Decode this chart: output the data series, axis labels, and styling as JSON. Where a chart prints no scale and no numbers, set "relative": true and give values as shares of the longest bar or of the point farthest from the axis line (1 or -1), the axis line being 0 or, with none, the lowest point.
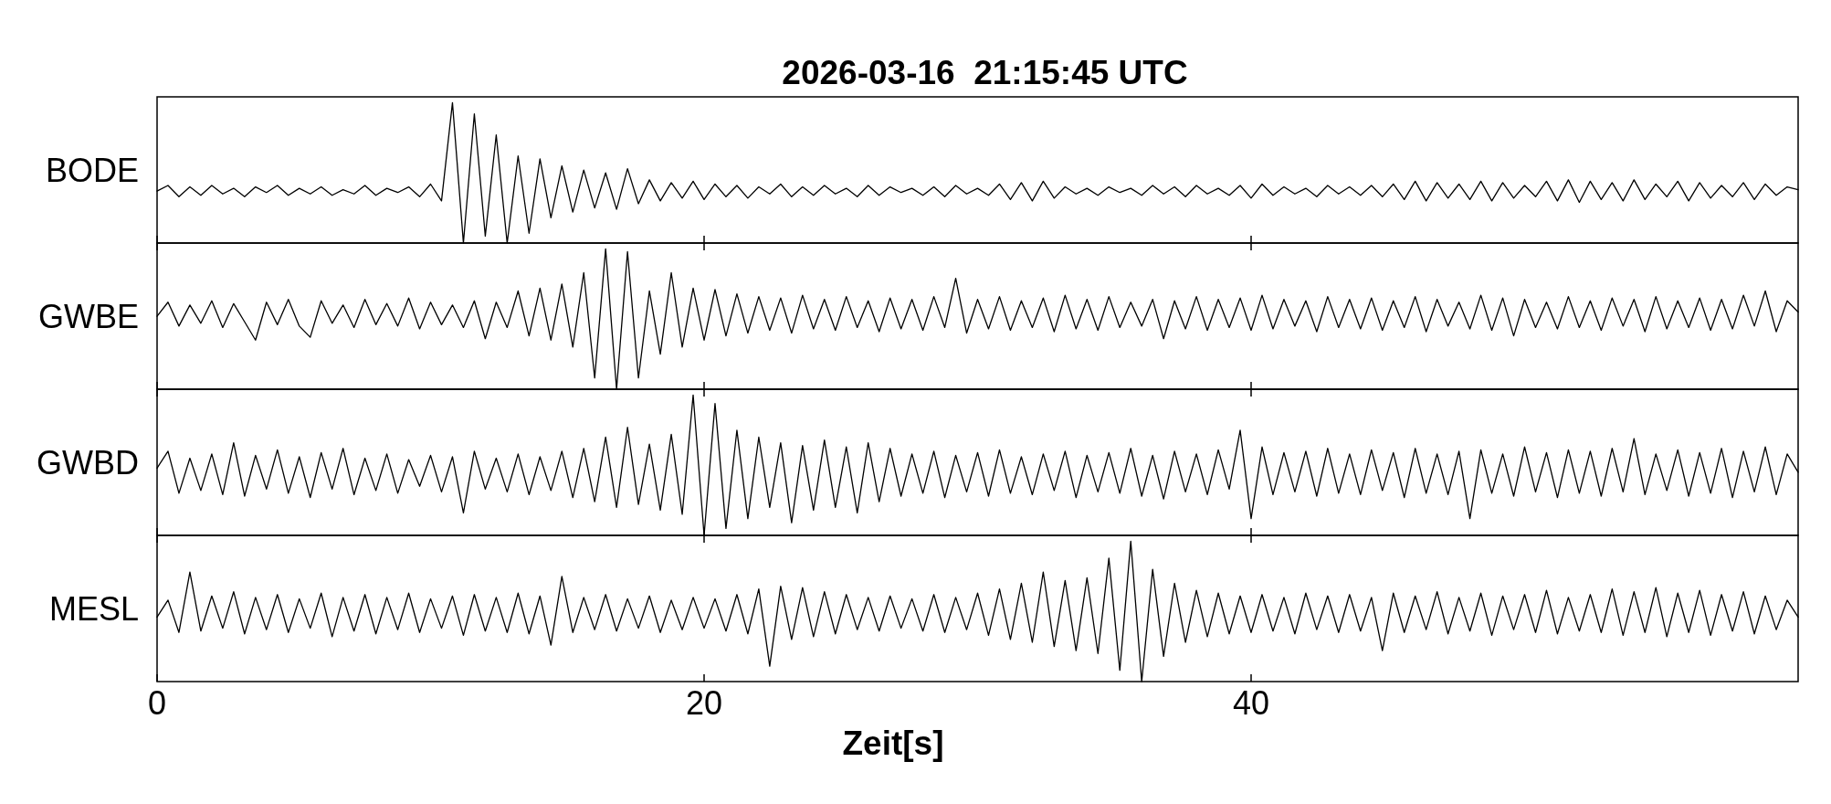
{
  "chart_data": [
    {
      "type": "line",
      "title": "2026-03-16  21:15:45 UTC",
      "ylabel": "BODE",
      "color": "#000000",
      "relative": true,
      "xlim": [
        0,
        60
      ],
      "xticks": [
        0,
        20,
        40
      ],
      "tick_labels": false,
      "x": [
        0,
        0.4,
        0.8,
        1.2,
        1.6,
        2,
        2.4,
        2.8,
        3.2,
        3.6,
        4,
        4.4,
        4.8,
        5.2,
        5.6,
        6,
        6.4,
        6.8,
        7.2,
        7.6,
        8,
        8.4,
        8.8,
        9.2,
        9.6,
        10,
        10.4,
        10.8,
        11.2,
        11.6,
        12,
        12.4,
        12.8,
        13.2,
        13.6,
        14,
        14.4,
        14.8,
        15.2,
        15.6,
        16,
        16.4,
        16.8,
        17.2,
        17.6,
        18,
        18.4,
        18.8,
        19.2,
        19.6,
        20,
        20.4,
        20.8,
        21.2,
        21.6,
        22,
        22.4,
        22.8,
        23.2,
        23.6,
        24,
        24.4,
        24.8,
        25.2,
        25.6,
        26,
        26.4,
        26.8,
        27.2,
        27.6,
        28,
        28.4,
        28.8,
        29.2,
        29.6,
        30,
        30.4,
        30.8,
        31.2,
        31.6,
        32,
        32.4,
        32.8,
        33.2,
        33.6,
        34,
        34.4,
        34.8,
        35.2,
        35.6,
        36,
        36.4,
        36.8,
        37.2,
        37.6,
        38,
        38.4,
        38.8,
        39.2,
        39.6,
        40,
        40.4,
        40.8,
        41.2,
        41.6,
        42,
        42.4,
        42.8,
        43.2,
        43.6,
        44,
        44.4,
        44.8,
        45.2,
        45.6,
        46,
        46.4,
        46.8,
        47.2,
        47.6,
        48,
        48.4,
        48.8,
        49.2,
        49.6,
        50,
        50.4,
        50.8,
        51.2,
        51.6,
        52,
        52.4,
        52.8,
        53.2,
        53.6,
        54,
        54.4,
        54.8,
        55.2,
        55.6,
        56,
        56.4,
        56.8,
        57.2,
        57.6,
        58,
        58.4,
        58.8,
        59.2,
        59.6,
        60
      ],
      "values": [
        0.37,
        0.41,
        0.33,
        0.4,
        0.34,
        0.41,
        0.35,
        0.39,
        0.33,
        0.4,
        0.36,
        0.41,
        0.34,
        0.39,
        0.35,
        0.4,
        0.34,
        0.38,
        0.35,
        0.41,
        0.34,
        0.39,
        0.36,
        0.4,
        0.33,
        0.42,
        0.3,
        1.0,
        0.0,
        0.92,
        0.05,
        0.77,
        0.0,
        0.62,
        0.07,
        0.6,
        0.18,
        0.55,
        0.22,
        0.52,
        0.25,
        0.5,
        0.24,
        0.53,
        0.28,
        0.45,
        0.3,
        0.43,
        0.32,
        0.44,
        0.31,
        0.42,
        0.33,
        0.41,
        0.32,
        0.4,
        0.35,
        0.42,
        0.33,
        0.4,
        0.34,
        0.41,
        0.35,
        0.39,
        0.33,
        0.41,
        0.34,
        0.4,
        0.36,
        0.39,
        0.34,
        0.4,
        0.33,
        0.41,
        0.35,
        0.39,
        0.34,
        0.42,
        0.31,
        0.43,
        0.3,
        0.44,
        0.32,
        0.4,
        0.35,
        0.39,
        0.34,
        0.4,
        0.36,
        0.39,
        0.34,
        0.41,
        0.35,
        0.4,
        0.33,
        0.41,
        0.35,
        0.39,
        0.34,
        0.41,
        0.32,
        0.42,
        0.34,
        0.4,
        0.35,
        0.39,
        0.33,
        0.41,
        0.35,
        0.4,
        0.34,
        0.41,
        0.33,
        0.42,
        0.31,
        0.44,
        0.3,
        0.43,
        0.32,
        0.42,
        0.31,
        0.44,
        0.3,
        0.43,
        0.32,
        0.41,
        0.33,
        0.44,
        0.3,
        0.45,
        0.29,
        0.44,
        0.31,
        0.43,
        0.3,
        0.45,
        0.31,
        0.42,
        0.33,
        0.44,
        0.3,
        0.43,
        0.32,
        0.41,
        0.33,
        0.43,
        0.31,
        0.42,
        0.34,
        0.4,
        0.38
      ]
    },
    {
      "type": "line",
      "ylabel": "GWBE",
      "color": "#000000",
      "relative": true,
      "xlim": [
        0,
        60
      ],
      "xticks": [
        0,
        20,
        40
      ],
      "tick_labels": false,
      "x": [
        0,
        0.4,
        0.8,
        1.2,
        1.6,
        2,
        2.4,
        2.8,
        3.2,
        3.6,
        4,
        4.4,
        4.8,
        5.2,
        5.6,
        6,
        6.4,
        6.8,
        7.2,
        7.6,
        8,
        8.4,
        8.8,
        9.2,
        9.6,
        10,
        10.4,
        10.8,
        11.2,
        11.6,
        12,
        12.4,
        12.8,
        13.2,
        13.6,
        14,
        14.4,
        14.8,
        15.2,
        15.6,
        16,
        16.4,
        16.8,
        17.2,
        17.6,
        18,
        18.4,
        18.8,
        19.2,
        19.6,
        20,
        20.4,
        20.8,
        21.2,
        21.6,
        22,
        22.4,
        22.8,
        23.2,
        23.6,
        24,
        24.4,
        24.8,
        25.2,
        25.6,
        26,
        26.4,
        26.8,
        27.2,
        27.6,
        28,
        28.4,
        28.8,
        29.2,
        29.6,
        30,
        30.4,
        30.8,
        31.2,
        31.6,
        32,
        32.4,
        32.8,
        33.2,
        33.6,
        34,
        34.4,
        34.8,
        35.2,
        35.6,
        36,
        36.4,
        36.8,
        37.2,
        37.6,
        38,
        38.4,
        38.8,
        39.2,
        39.6,
        40,
        40.4,
        40.8,
        41.2,
        41.6,
        42,
        42.4,
        42.8,
        43.2,
        43.6,
        44,
        44.4,
        44.8,
        45.2,
        45.6,
        46,
        46.4,
        46.8,
        47.2,
        47.6,
        48,
        48.4,
        48.8,
        49.2,
        49.6,
        50,
        50.4,
        50.8,
        51.2,
        51.6,
        52,
        52.4,
        52.8,
        53.2,
        53.6,
        54,
        54.4,
        54.8,
        55.2,
        55.6,
        56,
        56.4,
        56.8,
        57.2,
        57.6,
        58,
        58.4,
        58.8,
        59.2,
        59.6,
        60
      ],
      "values": [
        0.52,
        0.62,
        0.45,
        0.6,
        0.47,
        0.63,
        0.44,
        0.61,
        0.48,
        0.35,
        0.62,
        0.46,
        0.64,
        0.45,
        0.37,
        0.63,
        0.47,
        0.6,
        0.44,
        0.64,
        0.46,
        0.61,
        0.45,
        0.65,
        0.43,
        0.62,
        0.46,
        0.6,
        0.44,
        0.63,
        0.36,
        0.62,
        0.44,
        0.7,
        0.38,
        0.72,
        0.35,
        0.75,
        0.3,
        0.83,
        0.08,
        1.0,
        0.0,
        0.98,
        0.08,
        0.7,
        0.25,
        0.83,
        0.3,
        0.72,
        0.35,
        0.71,
        0.38,
        0.68,
        0.4,
        0.66,
        0.42,
        0.65,
        0.4,
        0.67,
        0.43,
        0.64,
        0.42,
        0.66,
        0.44,
        0.63,
        0.41,
        0.65,
        0.43,
        0.64,
        0.42,
        0.66,
        0.44,
        0.79,
        0.4,
        0.64,
        0.43,
        0.66,
        0.42,
        0.63,
        0.44,
        0.65,
        0.41,
        0.67,
        0.43,
        0.64,
        0.42,
        0.66,
        0.44,
        0.62,
        0.45,
        0.64,
        0.36,
        0.63,
        0.43,
        0.66,
        0.42,
        0.64,
        0.44,
        0.65,
        0.42,
        0.67,
        0.43,
        0.64,
        0.45,
        0.63,
        0.41,
        0.66,
        0.44,
        0.64,
        0.43,
        0.65,
        0.42,
        0.63,
        0.44,
        0.66,
        0.41,
        0.64,
        0.45,
        0.62,
        0.43,
        0.67,
        0.42,
        0.65,
        0.38,
        0.64,
        0.44,
        0.62,
        0.43,
        0.66,
        0.44,
        0.63,
        0.42,
        0.65,
        0.45,
        0.64,
        0.41,
        0.66,
        0.43,
        0.63,
        0.44,
        0.65,
        0.42,
        0.64,
        0.43,
        0.67,
        0.45,
        0.7,
        0.41,
        0.63,
        0.55
      ]
    },
    {
      "type": "line",
      "ylabel": "GWBD",
      "color": "#000000",
      "relative": true,
      "xlim": [
        0,
        60
      ],
      "xticks": [
        0,
        20,
        40
      ],
      "tick_labels": false,
      "x": [
        0,
        0.4,
        0.8,
        1.2,
        1.6,
        2,
        2.4,
        2.8,
        3.2,
        3.6,
        4,
        4.4,
        4.8,
        5.2,
        5.6,
        6,
        6.4,
        6.8,
        7.2,
        7.6,
        8,
        8.4,
        8.8,
        9.2,
        9.6,
        10,
        10.4,
        10.8,
        11.2,
        11.6,
        12,
        12.4,
        12.8,
        13.2,
        13.6,
        14,
        14.4,
        14.8,
        15.2,
        15.6,
        16,
        16.4,
        16.8,
        17.2,
        17.6,
        18,
        18.4,
        18.8,
        19.2,
        19.6,
        20,
        20.4,
        20.8,
        21.2,
        21.6,
        22,
        22.4,
        22.8,
        23.2,
        23.6,
        24,
        24.4,
        24.8,
        25.2,
        25.6,
        26,
        26.4,
        26.8,
        27.2,
        27.6,
        28,
        28.4,
        28.8,
        29.2,
        29.6,
        30,
        30.4,
        30.8,
        31.2,
        31.6,
        32,
        32.4,
        32.8,
        33.2,
        33.6,
        34,
        34.4,
        34.8,
        35.2,
        35.6,
        36,
        36.4,
        36.8,
        37.2,
        37.6,
        38,
        38.4,
        38.8,
        39.2,
        39.6,
        40,
        40.4,
        40.8,
        41.2,
        41.6,
        42,
        42.4,
        42.8,
        43.2,
        43.6,
        44,
        44.4,
        44.8,
        45.2,
        45.6,
        46,
        46.4,
        46.8,
        47.2,
        47.6,
        48,
        48.4,
        48.8,
        49.2,
        49.6,
        50,
        50.4,
        50.8,
        51.2,
        51.6,
        52,
        52.4,
        52.8,
        53.2,
        53.6,
        54,
        54.4,
        54.8,
        55.2,
        55.6,
        56,
        56.4,
        56.8,
        57.2,
        57.6,
        58,
        58.4,
        58.8,
        59.2,
        59.6,
        60
      ],
      "values": [
        0.48,
        0.6,
        0.3,
        0.55,
        0.32,
        0.58,
        0.29,
        0.66,
        0.28,
        0.57,
        0.33,
        0.61,
        0.3,
        0.56,
        0.27,
        0.59,
        0.33,
        0.62,
        0.29,
        0.55,
        0.32,
        0.58,
        0.3,
        0.54,
        0.35,
        0.57,
        0.31,
        0.56,
        0.16,
        0.6,
        0.33,
        0.55,
        0.31,
        0.58,
        0.29,
        0.56,
        0.32,
        0.6,
        0.27,
        0.62,
        0.24,
        0.7,
        0.2,
        0.77,
        0.22,
        0.65,
        0.18,
        0.72,
        0.15,
        1.0,
        0.0,
        0.94,
        0.05,
        0.75,
        0.12,
        0.7,
        0.2,
        0.66,
        0.09,
        0.64,
        0.18,
        0.68,
        0.2,
        0.63,
        0.16,
        0.66,
        0.24,
        0.62,
        0.28,
        0.58,
        0.3,
        0.6,
        0.27,
        0.57,
        0.31,
        0.59,
        0.28,
        0.61,
        0.3,
        0.56,
        0.29,
        0.58,
        0.32,
        0.6,
        0.27,
        0.57,
        0.31,
        0.59,
        0.3,
        0.62,
        0.28,
        0.57,
        0.26,
        0.6,
        0.31,
        0.58,
        0.29,
        0.61,
        0.33,
        0.75,
        0.12,
        0.63,
        0.29,
        0.59,
        0.31,
        0.6,
        0.28,
        0.62,
        0.3,
        0.58,
        0.29,
        0.61,
        0.32,
        0.59,
        0.27,
        0.62,
        0.3,
        0.58,
        0.29,
        0.6,
        0.12,
        0.61,
        0.3,
        0.58,
        0.28,
        0.63,
        0.31,
        0.59,
        0.27,
        0.61,
        0.3,
        0.6,
        0.28,
        0.62,
        0.31,
        0.69,
        0.29,
        0.58,
        0.32,
        0.61,
        0.28,
        0.59,
        0.3,
        0.62,
        0.27,
        0.6,
        0.31,
        0.63,
        0.29,
        0.58,
        0.45
      ]
    },
    {
      "type": "line",
      "ylabel": "MESL",
      "xlabel": "Zeit[s]",
      "color": "#000000",
      "relative": true,
      "xlim": [
        0,
        60
      ],
      "xticks": [
        0,
        20,
        40
      ],
      "tick_labels": "x",
      "x": [
        0,
        0.4,
        0.8,
        1.2,
        1.6,
        2,
        2.4,
        2.8,
        3.2,
        3.6,
        4,
        4.4,
        4.8,
        5.2,
        5.6,
        6,
        6.4,
        6.8,
        7.2,
        7.6,
        8,
        8.4,
        8.8,
        9.2,
        9.6,
        10,
        10.4,
        10.8,
        11.2,
        11.6,
        12,
        12.4,
        12.8,
        13.2,
        13.6,
        14,
        14.4,
        14.8,
        15.2,
        15.6,
        16,
        16.4,
        16.8,
        17.2,
        17.6,
        18,
        18.4,
        18.8,
        19.2,
        19.6,
        20,
        20.4,
        20.8,
        21.2,
        21.6,
        22,
        22.4,
        22.8,
        23.2,
        23.6,
        24,
        24.4,
        24.8,
        25.2,
        25.6,
        26,
        26.4,
        26.8,
        27.2,
        27.6,
        28,
        28.4,
        28.8,
        29.2,
        29.6,
        30,
        30.4,
        30.8,
        31.2,
        31.6,
        32,
        32.4,
        32.8,
        33.2,
        33.6,
        34,
        34.4,
        34.8,
        35.2,
        35.6,
        36,
        36.4,
        36.8,
        37.2,
        37.6,
        38,
        38.4,
        38.8,
        39.2,
        39.6,
        40,
        40.4,
        40.8,
        41.2,
        41.6,
        42,
        42.4,
        42.8,
        43.2,
        43.6,
        44,
        44.4,
        44.8,
        45.2,
        45.6,
        46,
        46.4,
        46.8,
        47.2,
        47.6,
        48,
        48.4,
        48.8,
        49.2,
        49.6,
        50,
        50.4,
        50.8,
        51.2,
        51.6,
        52,
        52.4,
        52.8,
        53.2,
        53.6,
        54,
        54.4,
        54.8,
        55.2,
        55.6,
        56,
        56.4,
        56.8,
        57.2,
        57.6,
        58,
        58.4,
        58.8,
        59.2,
        59.6,
        60
      ],
      "values": [
        0.46,
        0.58,
        0.35,
        0.78,
        0.36,
        0.61,
        0.38,
        0.64,
        0.34,
        0.6,
        0.37,
        0.62,
        0.35,
        0.59,
        0.38,
        0.63,
        0.32,
        0.6,
        0.36,
        0.62,
        0.34,
        0.6,
        0.37,
        0.63,
        0.35,
        0.59,
        0.38,
        0.61,
        0.33,
        0.62,
        0.36,
        0.6,
        0.35,
        0.63,
        0.34,
        0.61,
        0.26,
        0.75,
        0.35,
        0.6,
        0.37,
        0.62,
        0.36,
        0.59,
        0.38,
        0.61,
        0.35,
        0.58,
        0.37,
        0.6,
        0.38,
        0.59,
        0.36,
        0.62,
        0.34,
        0.66,
        0.11,
        0.68,
        0.3,
        0.67,
        0.32,
        0.64,
        0.34,
        0.62,
        0.37,
        0.6,
        0.36,
        0.61,
        0.38,
        0.59,
        0.36,
        0.62,
        0.35,
        0.6,
        0.37,
        0.63,
        0.33,
        0.66,
        0.3,
        0.7,
        0.28,
        0.78,
        0.25,
        0.72,
        0.22,
        0.74,
        0.2,
        0.88,
        0.08,
        1.0,
        0.0,
        0.8,
        0.18,
        0.7,
        0.28,
        0.65,
        0.32,
        0.63,
        0.34,
        0.61,
        0.35,
        0.62,
        0.36,
        0.6,
        0.34,
        0.63,
        0.37,
        0.61,
        0.35,
        0.62,
        0.36,
        0.6,
        0.22,
        0.63,
        0.35,
        0.61,
        0.37,
        0.64,
        0.34,
        0.6,
        0.36,
        0.63,
        0.33,
        0.61,
        0.37,
        0.62,
        0.35,
        0.65,
        0.34,
        0.6,
        0.36,
        0.62,
        0.35,
        0.66,
        0.33,
        0.64,
        0.35,
        0.67,
        0.32,
        0.63,
        0.35,
        0.65,
        0.33,
        0.62,
        0.36,
        0.64,
        0.34,
        0.61,
        0.37,
        0.58,
        0.46
      ]
    }
  ]
}
